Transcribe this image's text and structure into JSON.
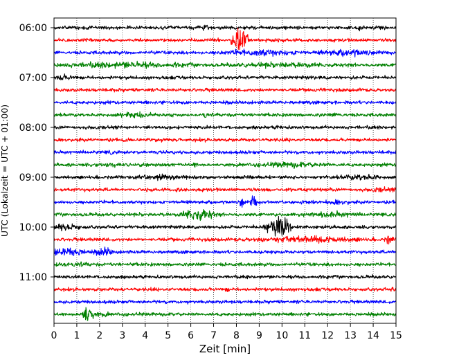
{
  "chart_data": {
    "type": "line",
    "subtype": "helicorder",
    "title": "",
    "xlabel": "Zeit  [min]",
    "ylabel": "UTC (Lokalzeit = UTC + 01:00)",
    "xlim": [
      0,
      15
    ],
    "x_ticks": [
      0,
      1,
      2,
      3,
      4,
      5,
      6,
      7,
      8,
      9,
      10,
      11,
      12,
      13,
      14,
      15
    ],
    "x_tick_labels": [
      "0",
      "1",
      "2",
      "3",
      "4",
      "5",
      "6",
      "7",
      "8",
      "9",
      "10",
      "11",
      "12",
      "13",
      "14",
      "15"
    ],
    "y_tick_labels": [
      "06:00",
      "07:00",
      "08:00",
      "09:00",
      "10:00",
      "11:00"
    ],
    "minutes_per_trace": 15,
    "grid": "vertical dotted lines at each minute",
    "legend": "none",
    "color_cycle": [
      "#000000",
      "#ff0000",
      "#0000ff",
      "#008000"
    ],
    "traces": [
      {
        "start_time": "06:00",
        "color": "#000000",
        "events": [
          {
            "minute": 6.6,
            "amp": 0.35,
            "dur": 0.3
          },
          {
            "minute": 13.4,
            "amp": 0.4,
            "dur": 0.25
          },
          {
            "minute": 14.2,
            "amp": 0.3,
            "dur": 0.5
          }
        ]
      },
      {
        "start_time": "06:15",
        "color": "#ff0000",
        "events": [
          {
            "minute": 8.15,
            "amp": 1.8,
            "dur": 0.4
          }
        ]
      },
      {
        "start_time": "06:30",
        "color": "#0000ff",
        "events": [
          {
            "minute": 9.0,
            "amp": 0.45,
            "dur": 2.5
          },
          {
            "minute": 13.0,
            "amp": 0.45,
            "dur": 2.0
          }
        ]
      },
      {
        "start_time": "06:45",
        "color": "#008000",
        "events": [
          {
            "minute": 3.0,
            "amp": 0.4,
            "dur": 5.0
          },
          {
            "minute": 10.0,
            "amp": 0.35,
            "dur": 4.0
          }
        ]
      },
      {
        "start_time": "07:00",
        "color": "#000000",
        "events": [
          {
            "minute": 0.3,
            "amp": 0.4,
            "dur": 1.0
          }
        ]
      },
      {
        "start_time": "07:15",
        "color": "#ff0000",
        "events": []
      },
      {
        "start_time": "07:30",
        "color": "#0000ff",
        "events": []
      },
      {
        "start_time": "07:45",
        "color": "#008000",
        "events": [
          {
            "minute": 3.5,
            "amp": 0.4,
            "dur": 1.2
          },
          {
            "minute": 6.6,
            "amp": 0.5,
            "dur": 0.2
          },
          {
            "minute": 12.5,
            "amp": 0.3,
            "dur": 0.8
          }
        ]
      },
      {
        "start_time": "08:00",
        "color": "#000000",
        "events": [
          {
            "minute": 2.5,
            "amp": 0.25,
            "dur": 0.8
          },
          {
            "minute": 10.0,
            "amp": 0.25,
            "dur": 0.8
          }
        ]
      },
      {
        "start_time": "08:15",
        "color": "#ff0000",
        "events": []
      },
      {
        "start_time": "08:30",
        "color": "#0000ff",
        "events": [
          {
            "minute": 2.5,
            "amp": 0.35,
            "dur": 0.2
          }
        ]
      },
      {
        "start_time": "08:45",
        "color": "#008000",
        "events": [
          {
            "minute": 2.5,
            "amp": 0.3,
            "dur": 1.5
          },
          {
            "minute": 6.2,
            "amp": 0.4,
            "dur": 0.2
          },
          {
            "minute": 10.5,
            "amp": 0.35,
            "dur": 3.0
          }
        ]
      },
      {
        "start_time": "09:00",
        "color": "#000000",
        "events": [
          {
            "minute": 4.5,
            "amp": 0.35,
            "dur": 2.5
          },
          {
            "minute": 13.5,
            "amp": 0.4,
            "dur": 1.5
          }
        ]
      },
      {
        "start_time": "09:15",
        "color": "#ff0000",
        "events": [
          {
            "minute": 5.5,
            "amp": 0.35,
            "dur": 0.3
          },
          {
            "minute": 14.5,
            "amp": 0.35,
            "dur": 1.0
          }
        ]
      },
      {
        "start_time": "09:30",
        "color": "#0000ff",
        "events": [
          {
            "minute": 8.25,
            "amp": 0.9,
            "dur": 0.15
          },
          {
            "minute": 8.75,
            "amp": 1.1,
            "dur": 0.15
          },
          {
            "minute": 12.4,
            "amp": 0.35,
            "dur": 1.0
          }
        ]
      },
      {
        "start_time": "09:45",
        "color": "#008000",
        "events": [
          {
            "minute": 6.3,
            "amp": 0.8,
            "dur": 0.8
          },
          {
            "minute": 12.0,
            "amp": 0.4,
            "dur": 2.0
          }
        ]
      },
      {
        "start_time": "10:00",
        "color": "#000000",
        "events": [
          {
            "minute": 0.5,
            "amp": 0.5,
            "dur": 1.0
          },
          {
            "minute": 9.5,
            "amp": 0.7,
            "dur": 0.4
          },
          {
            "minute": 9.9,
            "amp": 1.5,
            "dur": 0.5
          }
        ]
      },
      {
        "start_time": "10:15",
        "color": "#ff0000",
        "events": [
          {
            "minute": 11.0,
            "amp": 0.45,
            "dur": 3.5
          },
          {
            "minute": 14.7,
            "amp": 0.7,
            "dur": 0.2
          }
        ]
      },
      {
        "start_time": "10:30",
        "color": "#0000ff",
        "events": [
          {
            "minute": 0.5,
            "amp": 0.6,
            "dur": 1.2
          },
          {
            "minute": 2.2,
            "amp": 0.6,
            "dur": 0.5
          }
        ]
      },
      {
        "start_time": "10:45",
        "color": "#008000",
        "events": [
          {
            "minute": 0.5,
            "amp": 0.35,
            "dur": 2.0
          }
        ]
      },
      {
        "start_time": "11:00",
        "color": "#000000",
        "events": []
      },
      {
        "start_time": "11:15",
        "color": "#ff0000",
        "events": [
          {
            "minute": 7.6,
            "amp": 0.35,
            "dur": 0.2
          },
          {
            "minute": 15.0,
            "amp": 0.3,
            "dur": 0.5
          }
        ]
      },
      {
        "start_time": "11:30",
        "color": "#0000ff",
        "events": []
      },
      {
        "start_time": "11:45",
        "color": "#008000",
        "events": [
          {
            "minute": 1.45,
            "amp": 1.3,
            "dur": 0.3
          },
          {
            "minute": 2.0,
            "amp": 0.3,
            "dur": 1.0
          }
        ]
      }
    ]
  }
}
